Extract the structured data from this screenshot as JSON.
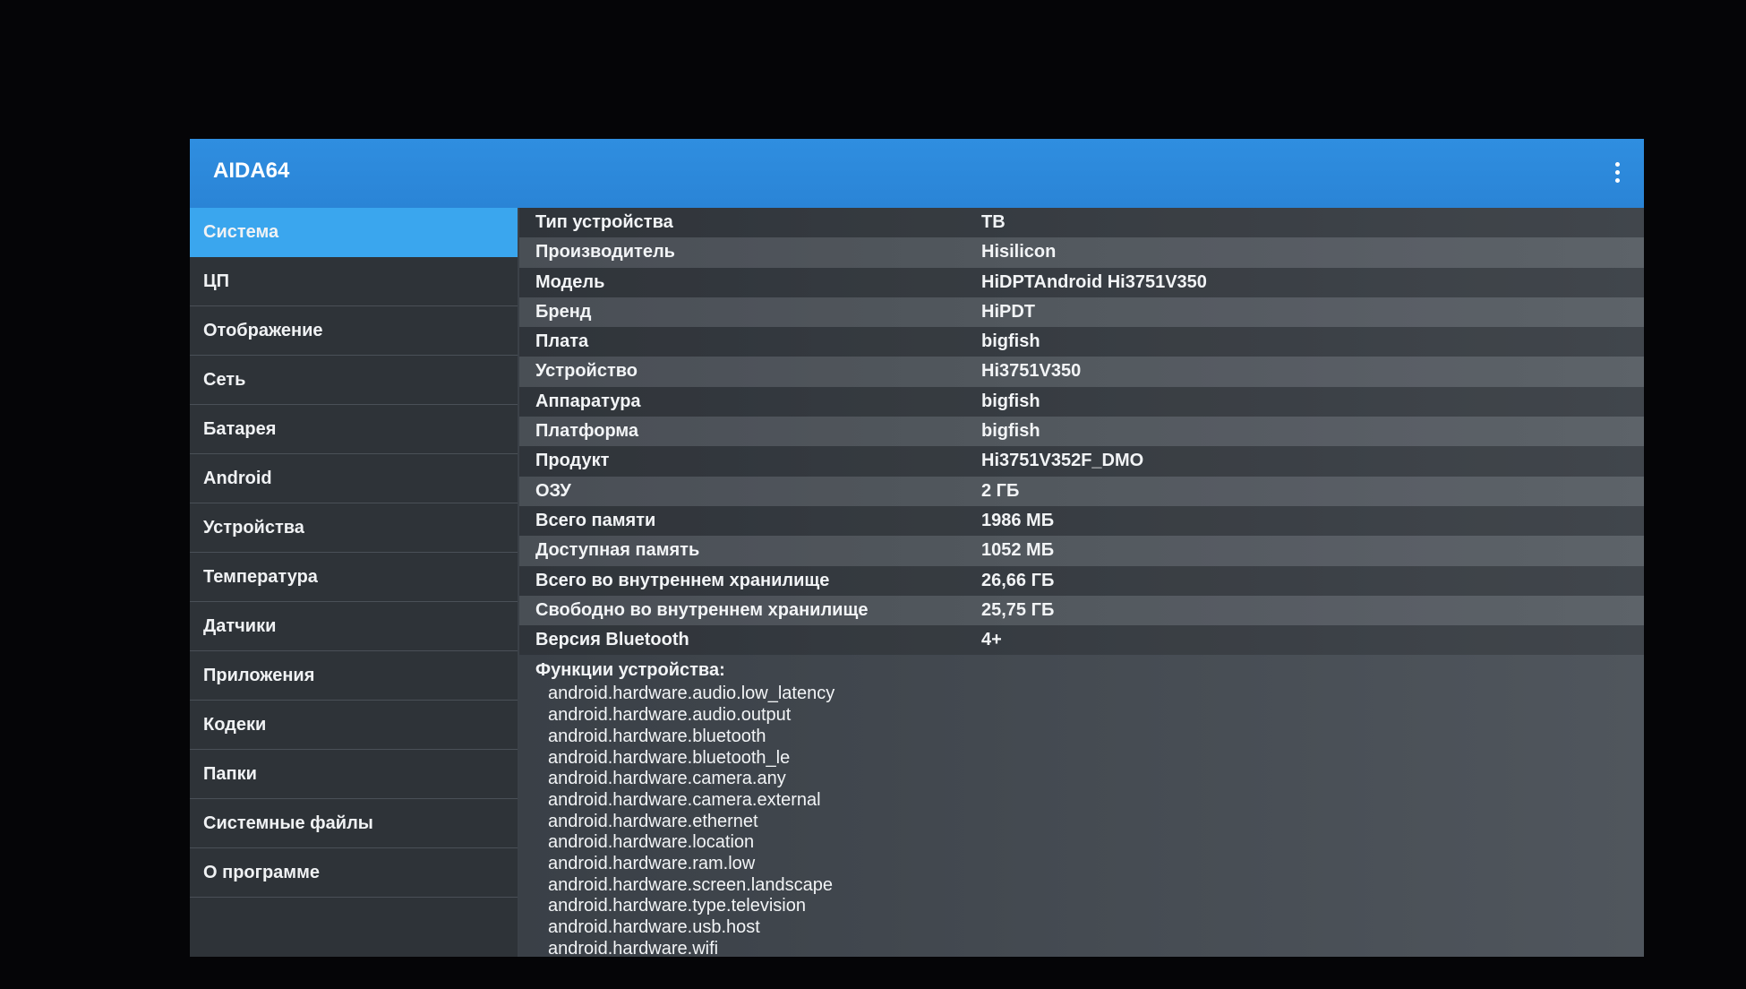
{
  "app": {
    "title": "AIDA64",
    "menu_icon": "more-vert-icon"
  },
  "sidebar": {
    "selected": 0,
    "items": [
      "Система",
      "ЦП",
      "Отображение",
      "Сеть",
      "Батарея",
      "Android",
      "Устройства",
      "Температура",
      "Датчики",
      "Приложения",
      "Кодеки",
      "Папки",
      "Системные файлы",
      "О программе"
    ]
  },
  "rows": [
    {
      "k": "Тип устройства",
      "v": "ТВ"
    },
    {
      "k": "Производитель",
      "v": "Hisilicon"
    },
    {
      "k": "Модель",
      "v": "HiDPTAndroid Hi3751V350"
    },
    {
      "k": "Бренд",
      "v": "HiPDT"
    },
    {
      "k": "Плата",
      "v": "bigfish"
    },
    {
      "k": "Устройство",
      "v": "Hi3751V350"
    },
    {
      "k": "Аппаратура",
      "v": "bigfish"
    },
    {
      "k": "Платформа",
      "v": "bigfish"
    },
    {
      "k": "Продукт",
      "v": "Hi3751V352F_DMO"
    },
    {
      "k": "ОЗУ",
      "v": "2 ГБ"
    },
    {
      "k": "Всего памяти",
      "v": "1986 МБ"
    },
    {
      "k": "Доступная память",
      "v": "1052 МБ"
    },
    {
      "k": "Всего во внутреннем хранилище",
      "v": "26,66 ГБ"
    },
    {
      "k": "Свободно во внутреннем хранилище",
      "v": "25,75 ГБ"
    },
    {
      "k": "Версия Bluetooth",
      "v": "4+"
    }
  ],
  "features": {
    "title": "Функции устройства:",
    "items": [
      "android.hardware.audio.low_latency",
      "android.hardware.audio.output",
      "android.hardware.bluetooth",
      "android.hardware.bluetooth_le",
      "android.hardware.camera.any",
      "android.hardware.camera.external",
      "android.hardware.ethernet",
      "android.hardware.location",
      "android.hardware.ram.low",
      "android.hardware.screen.landscape",
      "android.hardware.type.television",
      "android.hardware.usb.host",
      "android.hardware.wifi"
    ]
  },
  "colors": {
    "header": "#2f8ee0",
    "selected": "#3aa6ee",
    "sidebar": "#2e3338"
  }
}
